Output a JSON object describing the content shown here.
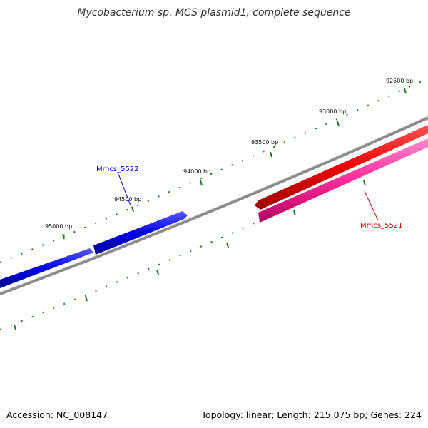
{
  "title": "Mycobacterium sp. MCS plasmid1, complete sequence",
  "ticks": [
    {
      "label": "92500 bp"
    },
    {
      "label": "93000 bp"
    },
    {
      "label": "93500 bp"
    },
    {
      "label": "94000 bp"
    },
    {
      "label": "94500 bp"
    },
    {
      "label": "95000 bp"
    }
  ],
  "genes": [
    {
      "name": "Mmcs_5522",
      "strand": "forward",
      "color": "#0000cc"
    },
    {
      "name": "Mmcs_5521",
      "strand": "reverse",
      "color": "#cc0000"
    }
  ],
  "colors": {
    "backbone": "#808080",
    "tick": "#1a7a1a",
    "forward": "#0000ff",
    "reverse_dark": "#ee0000",
    "reverse_light": "#ff3399"
  },
  "footer": {
    "accession": "Accession: NC_008147",
    "summary": "Topology: linear; Length: 215,075 bp; Genes: 224"
  }
}
